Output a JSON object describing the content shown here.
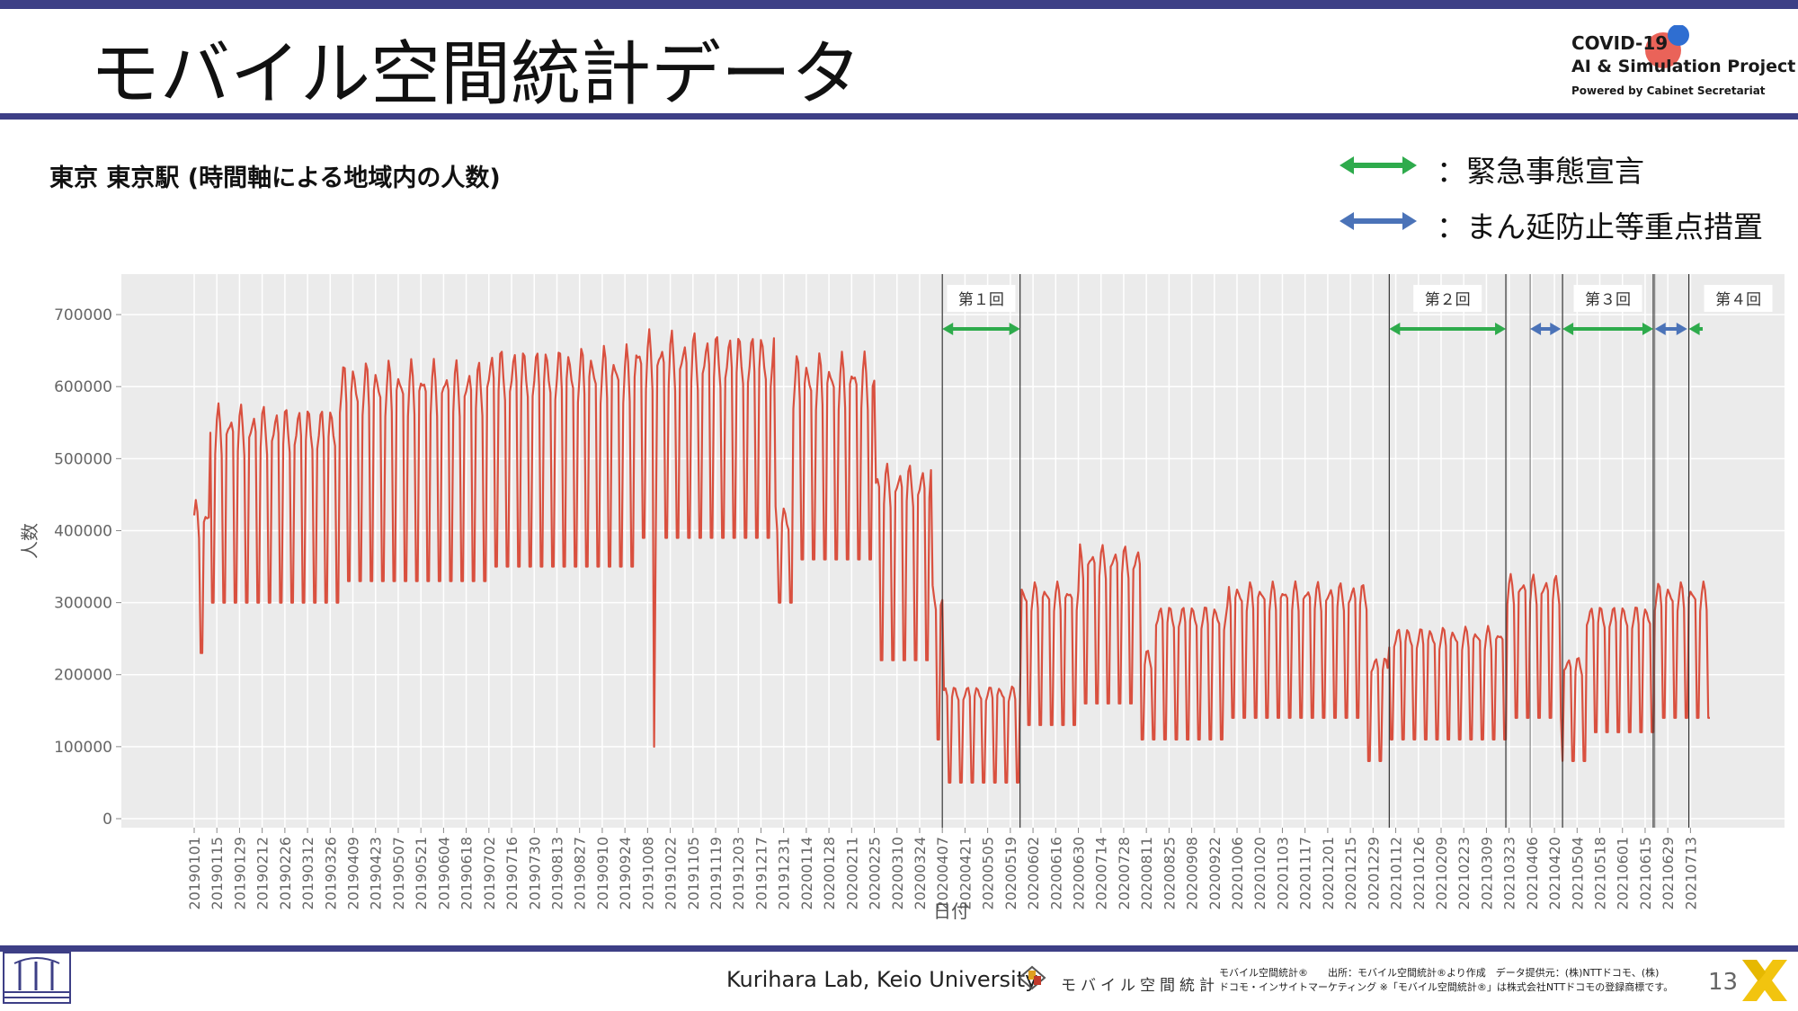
{
  "slide": {
    "title": "モバイル空間統計データ",
    "subtitle": "東京 東京駅 (時間軸による地域内の人数)",
    "logo": {
      "line1": "COVID-19",
      "line2": "AI & Simulation Project",
      "line3": "Powered by Cabinet Secretariat"
    },
    "legend": [
      {
        "label": "：緊急事態宣言",
        "color": "#2eab4c"
      },
      {
        "label": "：まん延防止等重点措置",
        "color": "#4b73b8"
      }
    ],
    "footer": {
      "credit": "Kurihara Lab, Keio University",
      "brand": "モバイル空間統計",
      "source_line1": "モバイル空間統計®　　出所：モバイル空間統計®より作成　データ提供元：(株)NTTドコモ、(株)",
      "source_line2": "ドコモ・インサイトマーケティング ※「モバイル空間統計®」は株式会社NTTドコモの登録商標です。",
      "page_number": "13"
    }
  },
  "chart_data": {
    "type": "line",
    "xlabel": "日付",
    "ylabel": "人数",
    "ylim": [
      0,
      750000
    ],
    "yticks": [
      0,
      100000,
      200000,
      300000,
      400000,
      500000,
      600000,
      700000
    ],
    "ytick_labels": [
      "0",
      "100000",
      "200000",
      "300000",
      "400000",
      "500000",
      "600000",
      "700000"
    ],
    "x_start": "2019-01-01",
    "x_end": "2021-07-25",
    "xtick_labels": [
      "20190101",
      "20190115",
      "20190129",
      "20190212",
      "20190226",
      "20190312",
      "20190326",
      "20190409",
      "20190423",
      "20190507",
      "20190521",
      "20190604",
      "20190618",
      "20190702",
      "20190716",
      "20190730",
      "20190813",
      "20190827",
      "20190910",
      "20190924",
      "20191008",
      "20191022",
      "20191105",
      "20191119",
      "20191203",
      "20191217",
      "20191231",
      "20200114",
      "20200128",
      "20200211",
      "20200225",
      "20200310",
      "20200324",
      "20200407",
      "20200421",
      "20200505",
      "20200519",
      "20200602",
      "20200616",
      "20200630",
      "20200714",
      "20200728",
      "20200811",
      "20200825",
      "20200908",
      "20200922",
      "20201006",
      "20201020",
      "20201103",
      "20201117",
      "20201201",
      "20201215",
      "20201229",
      "20210112",
      "20210126",
      "20210209",
      "20210223",
      "20210309",
      "20210323",
      "20210406",
      "20210420",
      "20210504",
      "20210518",
      "20210601",
      "20210615",
      "20210629",
      "20210713"
    ],
    "series": [
      {
        "color": "#d9503f",
        "pattern": "Weekly cycle: weekday values high, weekend values low",
        "segments": [
          {
            "from": "2019-01-01",
            "to": "2019-01-10",
            "weekday": 430000,
            "weekend": 230000
          },
          {
            "from": "2019-01-11",
            "to": "2019-03-31",
            "weekday": 560000,
            "weekend": 300000
          },
          {
            "from": "2019-04-01",
            "to": "2019-06-30",
            "weekday": 620000,
            "weekend": 330000
          },
          {
            "from": "2019-07-01",
            "to": "2019-09-30",
            "weekday": 640000,
            "weekend": 350000
          },
          {
            "from": "2019-10-01",
            "to": "2019-12-25",
            "weekday": 660000,
            "weekend": 390000
          },
          {
            "from": "2019-12-26",
            "to": "2020-01-05",
            "weekday": 430000,
            "weekend": 300000
          },
          {
            "from": "2020-01-06",
            "to": "2020-02-25",
            "weekday": 630000,
            "weekend": 360000
          },
          {
            "from": "2020-02-26",
            "to": "2020-03-31",
            "weekday": 480000,
            "weekend": 220000
          },
          {
            "from": "2020-04-01",
            "to": "2020-04-07",
            "weekday": 320000,
            "weekend": 110000
          },
          {
            "from": "2020-04-08",
            "to": "2020-05-25",
            "weekday": 180000,
            "weekend": 50000
          },
          {
            "from": "2020-05-26",
            "to": "2020-06-30",
            "weekday": 320000,
            "weekend": 130000
          },
          {
            "from": "2020-07-01",
            "to": "2020-08-07",
            "weekday": 370000,
            "weekend": 160000
          },
          {
            "from": "2020-08-08",
            "to": "2020-08-16",
            "weekday": 230000,
            "weekend": 110000
          },
          {
            "from": "2020-08-17",
            "to": "2020-09-30",
            "weekday": 290000,
            "weekend": 110000
          },
          {
            "from": "2020-10-01",
            "to": "2020-12-25",
            "weekday": 320000,
            "weekend": 140000
          },
          {
            "from": "2020-12-26",
            "to": "2021-01-07",
            "weekday": 220000,
            "weekend": 80000
          },
          {
            "from": "2021-01-08",
            "to": "2021-03-21",
            "weekday": 260000,
            "weekend": 110000
          },
          {
            "from": "2021-03-22",
            "to": "2021-04-24",
            "weekday": 330000,
            "weekend": 140000
          },
          {
            "from": "2021-04-25",
            "to": "2021-05-09",
            "weekday": 220000,
            "weekend": 80000
          },
          {
            "from": "2021-05-10",
            "to": "2021-06-20",
            "weekday": 290000,
            "weekend": 120000
          },
          {
            "from": "2021-06-21",
            "to": "2021-07-25",
            "weekday": 320000,
            "weekend": 140000
          }
        ],
        "spikes": [
          {
            "date": "2019-10-12",
            "value": 100000
          }
        ]
      }
    ],
    "periods": [
      {
        "label": "第１回",
        "type": "emergency",
        "from": "2020-04-07",
        "to": "2020-05-25"
      },
      {
        "label": "第２回",
        "type": "emergency",
        "from": "2021-01-08",
        "to": "2021-03-21"
      },
      {
        "label": "",
        "type": "priority",
        "from": "2021-04-05",
        "to": "2021-04-24"
      },
      {
        "label": "第３回",
        "type": "emergency",
        "from": "2021-04-25",
        "to": "2021-06-20"
      },
      {
        "label": "",
        "type": "priority",
        "from": "2021-06-21",
        "to": "2021-07-11"
      },
      {
        "label": "第４回",
        "type": "emergency",
        "from": "2021-07-12",
        "to": "2021-07-25"
      }
    ],
    "grid": true
  }
}
